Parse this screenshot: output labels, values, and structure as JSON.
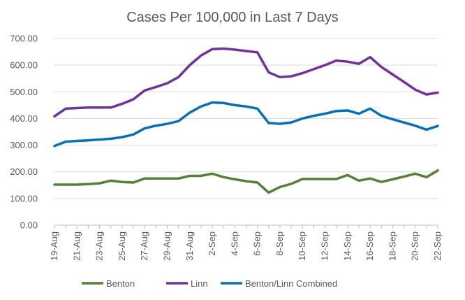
{
  "chart_data": {
    "type": "line",
    "title": "Cases Per 100,000 in Last 7 Days",
    "xlabel": "",
    "ylabel": "",
    "ylim": [
      0,
      700
    ],
    "yticks": [
      "0.00",
      "100.00",
      "200.00",
      "300.00",
      "400.00",
      "500.00",
      "600.00",
      "700.00"
    ],
    "grid": "horizontal",
    "legend_position": "bottom",
    "x": [
      "19-Aug",
      "20-Aug",
      "21-Aug",
      "22-Aug",
      "23-Aug",
      "24-Aug",
      "25-Aug",
      "26-Aug",
      "27-Aug",
      "28-Aug",
      "29-Aug",
      "30-Aug",
      "31-Aug",
      "1-Sep",
      "2-Sep",
      "3-Sep",
      "4-Sep",
      "5-Sep",
      "6-Sep",
      "7-Sep",
      "8-Sep",
      "9-Sep",
      "10-Sep",
      "11-Sep",
      "12-Sep",
      "13-Sep",
      "14-Sep",
      "15-Sep",
      "16-Sep",
      "17-Sep",
      "18-Sep",
      "19-Sep",
      "20-Sep",
      "21-Sep",
      "22-Sep"
    ],
    "xtick_labels": [
      "19-Aug",
      "21-Aug",
      "23-Aug",
      "25-Aug",
      "27-Aug",
      "29-Aug",
      "31-Aug",
      "2-Sep",
      "4-Sep",
      "6-Sep",
      "8-Sep",
      "10-Sep",
      "12-Sep",
      "14-Sep",
      "16-Sep",
      "18-Sep",
      "20-Sep",
      "22-Sep"
    ],
    "series": [
      {
        "name": "Benton",
        "color": "#548235",
        "values": [
          152,
          152,
          152,
          154,
          157,
          167,
          162,
          160,
          175,
          175,
          175,
          175,
          185,
          185,
          193,
          180,
          172,
          165,
          160,
          122,
          143,
          155,
          173,
          173,
          173,
          173,
          188,
          167,
          175,
          162,
          172,
          182,
          193,
          180,
          205
        ]
      },
      {
        "name": "Linn",
        "color": "#7030A0",
        "values": [
          408,
          437,
          439,
          441,
          441,
          441,
          455,
          472,
          505,
          518,
          532,
          555,
          600,
          636,
          660,
          662,
          658,
          653,
          648,
          573,
          555,
          558,
          570,
          585,
          600,
          617,
          613,
          605,
          630,
          593,
          565,
          537,
          508,
          490,
          497
        ]
      },
      {
        "name": "Benton/Linn Combined",
        "color": "#0070C0",
        "values": [
          297,
          313,
          316,
          318,
          321,
          324,
          330,
          340,
          363,
          373,
          380,
          390,
          422,
          445,
          460,
          458,
          450,
          445,
          437,
          383,
          380,
          385,
          400,
          410,
          418,
          428,
          430,
          418,
          437,
          410,
          397,
          385,
          373,
          358,
          372
        ]
      }
    ]
  }
}
